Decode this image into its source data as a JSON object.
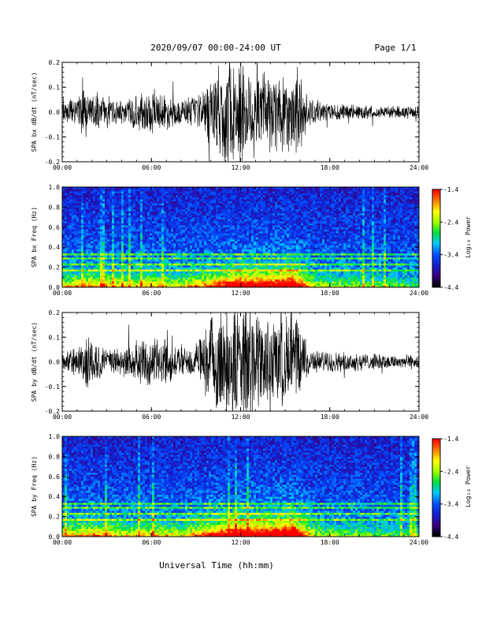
{
  "header": {
    "date_range": "2020/09/07  00:00-24:00 UT",
    "page": "Page 1/1"
  },
  "xlabel": "Universal Time (hh:mm)",
  "colors": {
    "trace": "#000000",
    "frame": "#000000",
    "colormap": [
      "#000000",
      "#3a0080",
      "#1420d0",
      "#0050ff",
      "#00c8ff",
      "#00e040",
      "#a0ff00",
      "#ffff00",
      "#ff8000",
      "#ff0000"
    ]
  },
  "chart_data": [
    {
      "type": "line",
      "ylabel": "SPA bx dB/dt (nT/sec)",
      "xlim": [
        0,
        24
      ],
      "ylim": [
        -0.2,
        0.2
      ],
      "xticks": [
        "00:00",
        "06:00",
        "12:00",
        "18:00",
        "24:00"
      ],
      "yticks": [
        "-0.2",
        "-0.1",
        "0.0",
        "0.1",
        "0.2"
      ],
      "series": [
        {
          "x": [
            0,
            1,
            1.6,
            2,
            2.5,
            3,
            4,
            5.5,
            6.5,
            8,
            9,
            9.5,
            10,
            11,
            12,
            13,
            14,
            15,
            16,
            16.5,
            17,
            18,
            20,
            22,
            24
          ],
          "amplitude": [
            0.03,
            0.05,
            0.09,
            0.06,
            0.07,
            0.04,
            0.04,
            0.07,
            0.07,
            0.04,
            0.05,
            0.08,
            0.12,
            0.18,
            0.2,
            0.16,
            0.14,
            0.15,
            0.14,
            0.05,
            0.04,
            0.03,
            0.025,
            0.02,
            0.02
          ]
        }
      ]
    },
    {
      "type": "heatmap",
      "ylabel": "SPA bx Freq (Hz)",
      "xlim": [
        0,
        24
      ],
      "ylim": [
        0,
        1.0
      ],
      "xticks": [
        "00:00",
        "06:00",
        "12:00",
        "18:00",
        "24:00"
      ],
      "yticks": [
        "0.0",
        "0.2",
        "0.4",
        "0.6",
        "0.8",
        "1.0"
      ],
      "colorbar": {
        "label": "Log₁₀ Power",
        "range": [
          -4.4,
          -1.4
        ],
        "ticks": [
          "-1.4",
          "-2.4",
          "-3.4",
          "-4.4"
        ]
      },
      "activity": {
        "x": [
          0,
          2,
          4,
          6,
          8,
          10,
          12,
          14,
          15.5,
          16,
          17,
          20,
          24
        ],
        "level": [
          0.35,
          0.45,
          0.35,
          0.4,
          0.35,
          0.5,
          0.7,
          0.65,
          0.8,
          0.6,
          0.3,
          0.25,
          0.2
        ]
      }
    },
    {
      "type": "line",
      "ylabel": "SPA by dB/dt (nT/sec)",
      "xlim": [
        0,
        24
      ],
      "ylim": [
        -0.2,
        0.2
      ],
      "xticks": [
        "00:00",
        "06:00",
        "12:00",
        "18:00",
        "24:00"
      ],
      "yticks": [
        "-0.2",
        "-0.1",
        "0.0",
        "0.1",
        "0.2"
      ],
      "series": [
        {
          "x": [
            0,
            1,
            1.6,
            2,
            2.5,
            3,
            4,
            5.5,
            6.5,
            8,
            9,
            9.5,
            10,
            11,
            12,
            13,
            14,
            15,
            16,
            16.5,
            17,
            18,
            20,
            22,
            24
          ],
          "amplitude": [
            0.03,
            0.05,
            0.1,
            0.08,
            0.07,
            0.04,
            0.05,
            0.08,
            0.08,
            0.05,
            0.06,
            0.1,
            0.15,
            0.2,
            0.2,
            0.18,
            0.15,
            0.16,
            0.15,
            0.05,
            0.04,
            0.035,
            0.03,
            0.025,
            0.025
          ]
        }
      ]
    },
    {
      "type": "heatmap",
      "ylabel": "SPA by Freq (Hz)",
      "xlim": [
        0,
        24
      ],
      "ylim": [
        0,
        1.0
      ],
      "xticks": [
        "00:00",
        "06:00",
        "12:00",
        "18:00",
        "24:00"
      ],
      "yticks": [
        "0.0",
        "0.2",
        "0.4",
        "0.6",
        "0.8",
        "1.0"
      ],
      "colorbar": {
        "label": "Log₁₀ Power",
        "range": [
          -4.4,
          -1.4
        ],
        "ticks": [
          "-1.4",
          "-2.4",
          "-3.4",
          "-4.4"
        ]
      },
      "activity": {
        "x": [
          0,
          2,
          4,
          6,
          8,
          10,
          12,
          14,
          15.5,
          16,
          17,
          20,
          24
        ],
        "level": [
          0.35,
          0.45,
          0.35,
          0.4,
          0.35,
          0.55,
          0.75,
          0.7,
          0.85,
          0.65,
          0.3,
          0.25,
          0.2
        ]
      }
    }
  ]
}
